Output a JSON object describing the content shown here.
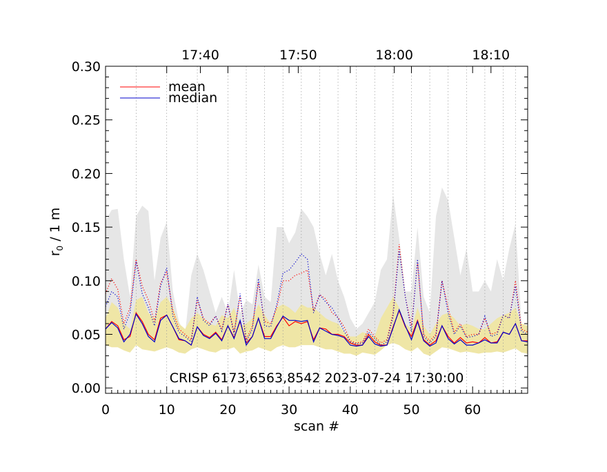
{
  "chart_data": {
    "type": "line",
    "title": "",
    "annotation": "CRISP 6173,6563,8542 2023-07-24 17:30:00",
    "xlabel": "scan #",
    "ylabel_main": "r",
    "ylabel_sub": "0",
    "ylabel_rest": " / 1 m",
    "xlim": [
      0,
      69
    ],
    "ylim": [
      -0.005,
      0.3
    ],
    "x_ticks": [
      0,
      10,
      20,
      30,
      40,
      50,
      60
    ],
    "x_tick_labels": [
      "0",
      "10",
      "20",
      "30",
      "40",
      "50",
      "60"
    ],
    "y_ticks": [
      0.0,
      0.05,
      0.1,
      0.15,
      0.2,
      0.25,
      0.3
    ],
    "y_tick_labels": [
      "0.00",
      "0.05",
      "0.10",
      "0.15",
      "0.20",
      "0.25",
      "0.30"
    ],
    "top_axis": {
      "ticks": [
        15.5,
        31.5,
        47.2,
        63.0
      ],
      "labels": [
        "17:40",
        "17:50",
        "18:00",
        "18:10"
      ]
    },
    "vertical_gridlines": [
      5,
      10,
      15,
      20,
      23,
      26,
      29,
      32,
      35,
      38,
      41,
      44,
      47,
      50,
      53,
      56,
      59,
      62,
      65,
      67
    ],
    "legend": {
      "placement": "top-left",
      "entries": [
        {
          "label": "mean",
          "color": "#ff0000"
        },
        {
          "label": "median",
          "color": "#0000cc"
        }
      ]
    },
    "grey_band": {
      "color": "#e6e6e6",
      "upper": [
        0.156,
        0.166,
        0.167,
        0.12,
        0.085,
        0.16,
        0.17,
        0.165,
        0.1,
        0.14,
        0.155,
        0.09,
        0.062,
        0.05,
        0.105,
        0.125,
        0.11,
        0.09,
        0.07,
        0.085,
        0.07,
        0.11,
        0.07,
        0.082,
        0.078,
        0.115,
        0.085,
        0.08,
        0.15,
        0.15,
        0.135,
        0.145,
        0.167,
        0.16,
        0.15,
        0.125,
        0.105,
        0.125,
        0.1,
        0.085,
        0.065,
        0.055,
        0.06,
        0.07,
        0.08,
        0.11,
        0.12,
        0.18,
        0.14,
        0.09,
        0.09,
        0.15,
        0.085,
        0.07,
        0.16,
        0.187,
        0.175,
        0.14,
        0.105,
        0.13,
        0.09,
        0.09,
        0.1,
        0.09,
        0.12,
        0.1,
        0.13,
        0.153,
        0.06,
        0.05
      ],
      "lower": [
        0.05,
        0.052,
        0.05,
        0.045,
        0.043,
        0.05,
        0.05,
        0.048,
        0.047,
        0.05,
        0.052,
        0.045,
        0.042,
        0.04,
        0.045,
        0.047,
        0.045,
        0.043,
        0.042,
        0.045,
        0.045,
        0.047,
        0.04,
        0.045,
        0.045,
        0.048,
        0.046,
        0.044,
        0.05,
        0.052,
        0.05,
        0.05,
        0.052,
        0.05,
        0.05,
        0.048,
        0.047,
        0.046,
        0.045,
        0.042,
        0.04,
        0.04,
        0.042,
        0.04,
        0.04,
        0.045,
        0.05,
        0.055,
        0.05,
        0.045,
        0.045,
        0.05,
        0.042,
        0.04,
        0.045,
        0.05,
        0.048,
        0.045,
        0.043,
        0.045,
        0.042,
        0.042,
        0.043,
        0.043,
        0.045,
        0.042,
        0.045,
        0.047,
        0.045,
        0.045
      ]
    },
    "yellow_band": {
      "color": "#efe6a6",
      "upper": [
        0.065,
        0.08,
        0.075,
        0.06,
        0.055,
        0.082,
        0.085,
        0.07,
        0.065,
        0.08,
        0.085,
        0.075,
        0.06,
        0.055,
        0.065,
        0.07,
        0.065,
        0.06,
        0.058,
        0.068,
        0.065,
        0.075,
        0.058,
        0.06,
        0.065,
        0.078,
        0.068,
        0.06,
        0.075,
        0.078,
        0.075,
        0.07,
        0.078,
        0.075,
        0.075,
        0.07,
        0.065,
        0.062,
        0.06,
        0.052,
        0.048,
        0.048,
        0.052,
        0.05,
        0.048,
        0.065,
        0.075,
        0.085,
        0.075,
        0.06,
        0.055,
        0.075,
        0.058,
        0.05,
        0.06,
        0.068,
        0.07,
        0.065,
        0.058,
        0.06,
        0.058,
        0.055,
        0.055,
        0.06,
        0.065,
        0.068,
        0.07,
        0.075,
        0.06,
        0.058
      ],
      "lower": [
        0.04,
        0.038,
        0.038,
        0.035,
        0.033,
        0.04,
        0.036,
        0.035,
        0.034,
        0.036,
        0.038,
        0.036,
        0.033,
        0.032,
        0.036,
        0.038,
        0.036,
        0.034,
        0.033,
        0.036,
        0.036,
        0.038,
        0.032,
        0.034,
        0.035,
        0.038,
        0.036,
        0.034,
        0.038,
        0.04,
        0.038,
        0.038,
        0.04,
        0.04,
        0.04,
        0.038,
        0.036,
        0.036,
        0.034,
        0.032,
        0.032,
        0.03,
        0.033,
        0.032,
        0.031,
        0.035,
        0.04,
        0.042,
        0.04,
        0.036,
        0.034,
        0.038,
        0.032,
        0.03,
        0.034,
        0.038,
        0.037,
        0.035,
        0.033,
        0.034,
        0.033,
        0.032,
        0.033,
        0.033,
        0.034,
        0.033,
        0.035,
        0.037,
        0.033,
        0.032
      ]
    },
    "series": [
      {
        "name": "mean",
        "style": "solid",
        "color": "#ff0000",
        "values": [
          0.055,
          0.062,
          0.058,
          0.045,
          0.048,
          0.07,
          0.062,
          0.05,
          0.045,
          0.065,
          0.068,
          0.057,
          0.045,
          0.044,
          0.04,
          0.057,
          0.05,
          0.047,
          0.052,
          0.045,
          0.058,
          0.047,
          0.062,
          0.042,
          0.048,
          0.065,
          0.048,
          0.048,
          0.058,
          0.066,
          0.058,
          0.062,
          0.06,
          0.062,
          0.045,
          0.056,
          0.055,
          0.05,
          0.05,
          0.048,
          0.042,
          0.04,
          0.04,
          0.05,
          0.043,
          0.04,
          0.04,
          0.057,
          0.072,
          0.057,
          0.048,
          0.063,
          0.045,
          0.04,
          0.044,
          0.058,
          0.048,
          0.042,
          0.047,
          0.042,
          0.043,
          0.042,
          0.047,
          0.042,
          0.043,
          0.052,
          0.05,
          0.06,
          0.044,
          0.044
        ]
      },
      {
        "name": "median",
        "style": "solid",
        "color": "#0000cc",
        "values": [
          0.055,
          0.061,
          0.056,
          0.043,
          0.05,
          0.069,
          0.06,
          0.048,
          0.043,
          0.063,
          0.068,
          0.057,
          0.046,
          0.044,
          0.04,
          0.057,
          0.049,
          0.046,
          0.051,
          0.044,
          0.058,
          0.046,
          0.063,
          0.04,
          0.048,
          0.065,
          0.046,
          0.046,
          0.057,
          0.067,
          0.063,
          0.063,
          0.062,
          0.063,
          0.043,
          0.056,
          0.053,
          0.05,
          0.049,
          0.047,
          0.04,
          0.039,
          0.04,
          0.048,
          0.041,
          0.039,
          0.04,
          0.056,
          0.073,
          0.058,
          0.045,
          0.062,
          0.044,
          0.039,
          0.042,
          0.058,
          0.046,
          0.041,
          0.045,
          0.04,
          0.04,
          0.042,
          0.045,
          0.042,
          0.042,
          0.052,
          0.05,
          0.06,
          0.044,
          0.043
        ]
      },
      {
        "name": "mean (dotted)",
        "style": "dotted",
        "color": "#ff0000",
        "values": [
          0.088,
          0.102,
          0.092,
          0.06,
          0.075,
          0.12,
          0.095,
          0.082,
          0.062,
          0.098,
          0.108,
          0.072,
          0.055,
          0.05,
          0.045,
          0.082,
          0.065,
          0.06,
          0.067,
          0.055,
          0.078,
          0.052,
          0.085,
          0.045,
          0.058,
          0.098,
          0.062,
          0.06,
          0.075,
          0.1,
          0.1,
          0.105,
          0.107,
          0.11,
          0.072,
          0.087,
          0.083,
          0.07,
          0.066,
          0.057,
          0.044,
          0.042,
          0.043,
          0.055,
          0.048,
          0.042,
          0.045,
          0.07,
          0.134,
          0.085,
          0.058,
          0.117,
          0.05,
          0.044,
          0.05,
          0.1,
          0.075,
          0.052,
          0.06,
          0.048,
          0.05,
          0.05,
          0.065,
          0.05,
          0.052,
          0.068,
          0.065,
          0.1,
          0.055,
          0.052
        ]
      },
      {
        "name": "median (dotted)",
        "style": "dotted",
        "color": "#0000cc",
        "values": [
          0.076,
          0.09,
          0.085,
          0.055,
          0.07,
          0.118,
          0.088,
          0.075,
          0.058,
          0.095,
          0.112,
          0.067,
          0.052,
          0.048,
          0.043,
          0.085,
          0.063,
          0.058,
          0.067,
          0.053,
          0.078,
          0.05,
          0.088,
          0.043,
          0.055,
          0.102,
          0.058,
          0.057,
          0.078,
          0.107,
          0.11,
          0.117,
          0.125,
          0.12,
          0.07,
          0.087,
          0.08,
          0.075,
          0.065,
          0.053,
          0.043,
          0.041,
          0.042,
          0.052,
          0.046,
          0.04,
          0.043,
          0.067,
          0.128,
          0.085,
          0.052,
          0.12,
          0.048,
          0.042,
          0.048,
          0.1,
          0.07,
          0.05,
          0.058,
          0.047,
          0.048,
          0.05,
          0.067,
          0.048,
          0.05,
          0.068,
          0.065,
          0.095,
          0.053,
          0.05
        ]
      }
    ]
  }
}
